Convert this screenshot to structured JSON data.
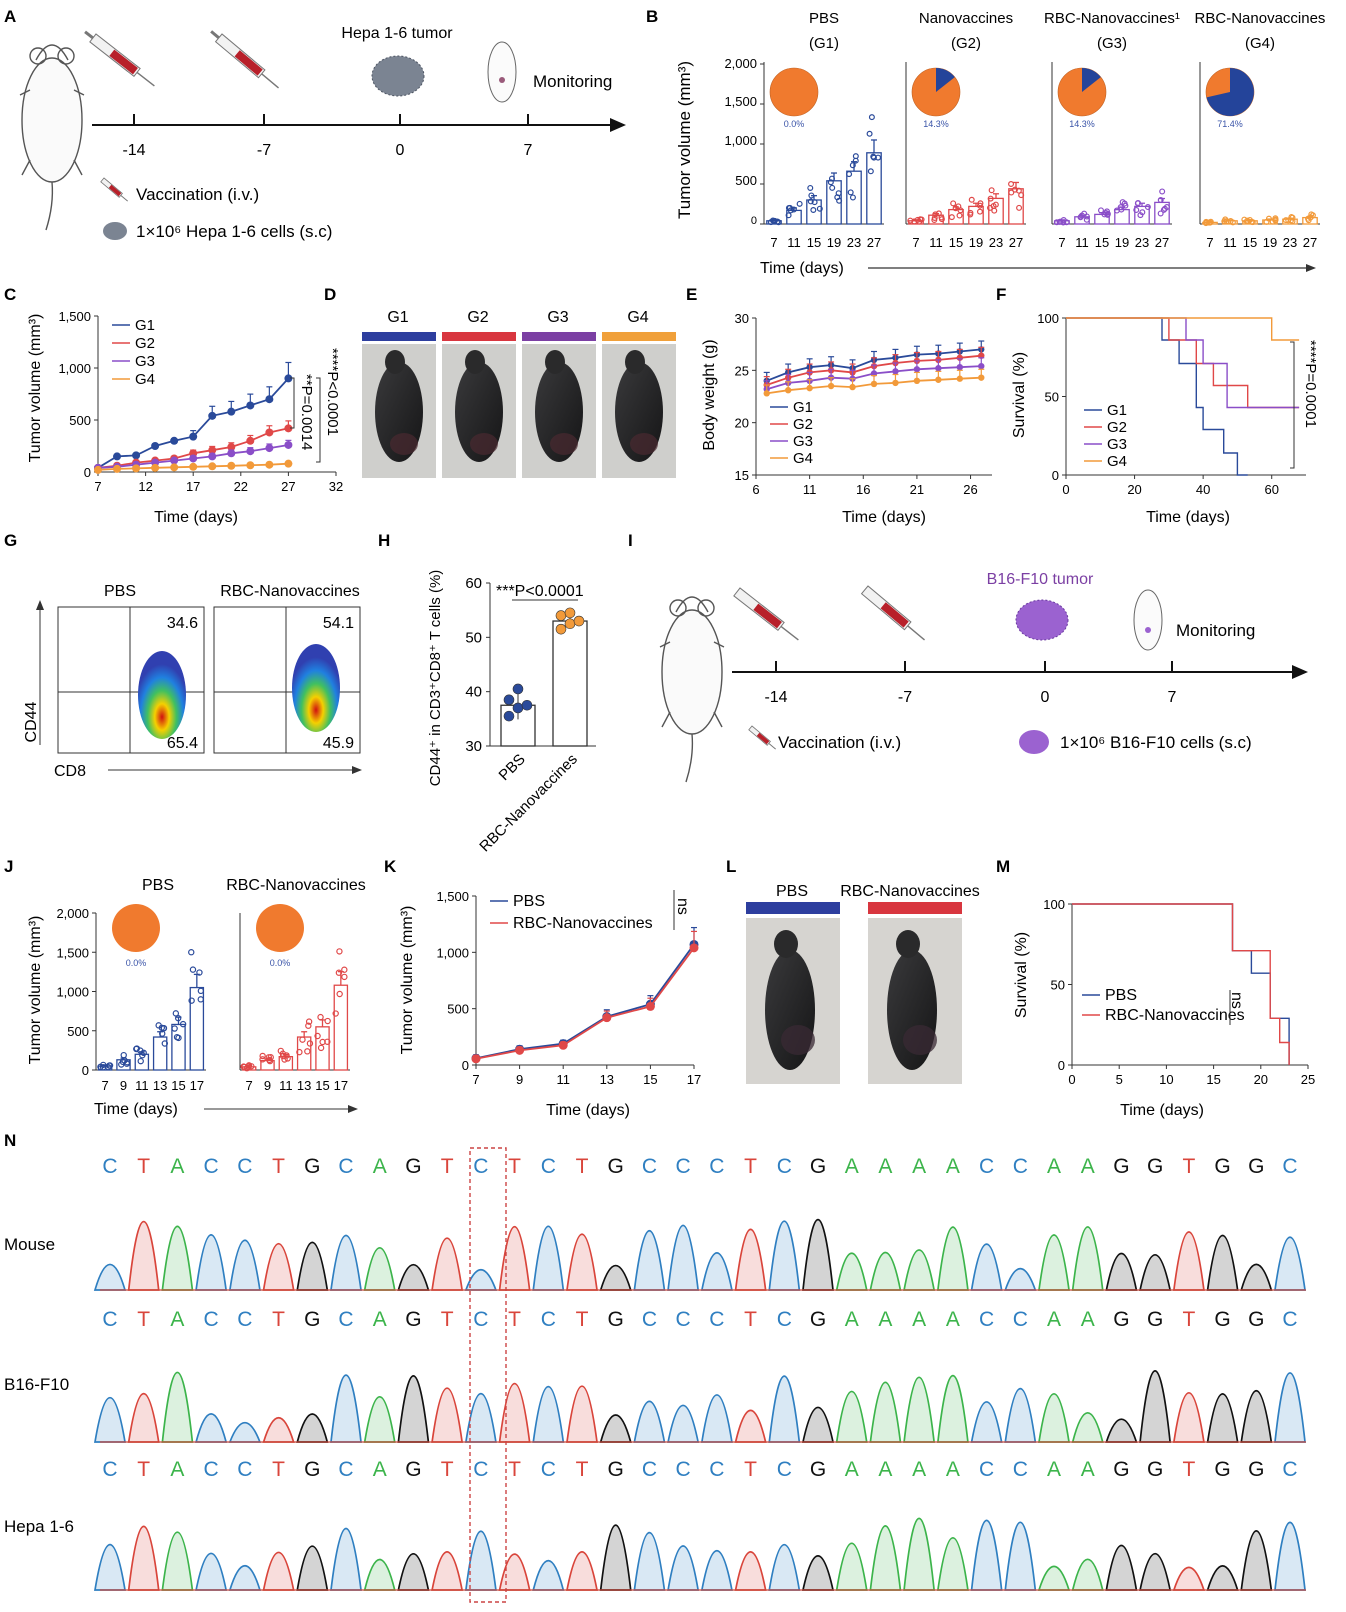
{
  "panel_letters": [
    "A",
    "B",
    "C",
    "D",
    "E",
    "F",
    "G",
    "H",
    "I",
    "J",
    "K",
    "L",
    "M",
    "N"
  ],
  "panel_a": {
    "tumor": "Hepa 1-6 tumor",
    "monitoring": "Monitoring",
    "ticks": [
      "-14",
      "-7",
      "0",
      "7"
    ],
    "legend_vaccination": "Vaccination (i.v.)",
    "legend_cells": "1×10⁶ Hepa 1-6 cells (s.c)"
  },
  "panel_i": {
    "tumor": "B16-F10 tumor",
    "monitoring": "Monitoring",
    "ticks": [
      "-14",
      "-7",
      "0",
      "7"
    ],
    "legend_vaccination": "Vaccination (i.v.)",
    "legend_cells": "1×10⁶ B16-F10 cells (s.c)"
  },
  "chart_data": [
    {
      "panel": "B",
      "type": "bar",
      "ylabel": "Tumor volume (mm³)",
      "xlabel": "Time (days)",
      "ylim": [
        0,
        2000
      ],
      "yticks": [
        "0",
        "500",
        "1,000",
        "1,500",
        "2,000"
      ],
      "categories": [
        "7",
        "11",
        "15",
        "19",
        "23",
        "27"
      ],
      "groups": [
        {
          "title": "PBS",
          "sub": "(G1)",
          "color": "#2a4a9a",
          "pie_percent": 0.0,
          "pie_label": "0.0%",
          "means": [
            40,
            170,
            300,
            540,
            660,
            890
          ]
        },
        {
          "title": "Nanovaccines",
          "sub": "(G2)",
          "color": "#e04848",
          "pie_percent": 14.3,
          "pie_label": "14.3%",
          "means": [
            40,
            110,
            180,
            220,
            320,
            440
          ]
        },
        {
          "title": "RBC-Nanovaccines¹",
          "sub": "(G3)",
          "color": "#8a4ec8",
          "pie_percent": 14.3,
          "pie_label": "14.3%",
          "means": [
            40,
            90,
            120,
            180,
            220,
            270
          ]
        },
        {
          "title": "RBC-Nanovaccines",
          "sub": "(G4)",
          "color": "#f29a3a",
          "pie_percent": 71.4,
          "pie_label": "71.4%",
          "means": [
            20,
            40,
            40,
            50,
            60,
            80
          ]
        }
      ]
    },
    {
      "panel": "C",
      "type": "line",
      "ylabel": "Tumor volume (mm³)",
      "xlabel": "Time (days)",
      "xlim": [
        7,
        32
      ],
      "ylim": [
        0,
        1500
      ],
      "xticks": [
        "7",
        "12",
        "17",
        "22",
        "27",
        "32"
      ],
      "yticks": [
        "0",
        "500",
        "1,000",
        "1,500"
      ],
      "x": [
        7,
        9,
        11,
        13,
        15,
        17,
        19,
        21,
        23,
        25,
        27
      ],
      "series": [
        {
          "name": "G1",
          "color": "#2a4a9a",
          "values": [
            40,
            150,
            160,
            250,
            300,
            340,
            540,
            580,
            640,
            700,
            900
          ]
        },
        {
          "name": "G2",
          "color": "#e04848",
          "values": [
            40,
            60,
            90,
            110,
            130,
            180,
            210,
            240,
            300,
            380,
            420
          ]
        },
        {
          "name": "G3",
          "color": "#8a4ec8",
          "values": [
            40,
            50,
            70,
            90,
            110,
            130,
            150,
            180,
            200,
            230,
            260
          ]
        },
        {
          "name": "G4",
          "color": "#f29a3a",
          "values": [
            20,
            30,
            35,
            40,
            45,
            50,
            55,
            60,
            65,
            70,
            80
          ]
        }
      ],
      "annotations": [
        "**P=0.0014",
        "****P<0.0001"
      ]
    },
    {
      "panel": "E",
      "type": "line",
      "ylabel": "Body weight (g)",
      "xlabel": "Time (days)",
      "xlim": [
        6,
        28
      ],
      "ylim": [
        15,
        30
      ],
      "xticks": [
        "6",
        "11",
        "16",
        "21",
        "26"
      ],
      "yticks": [
        "15",
        "20",
        "25",
        "30"
      ],
      "x": [
        7,
        9,
        11,
        13,
        15,
        17,
        19,
        21,
        23,
        25,
        27
      ],
      "series": [
        {
          "name": "G1",
          "color": "#2a4a9a",
          "values": [
            24.0,
            24.8,
            25.3,
            25.5,
            25.2,
            26.0,
            26.2,
            26.5,
            26.6,
            26.8,
            27.0
          ]
        },
        {
          "name": "G2",
          "color": "#e04848",
          "values": [
            23.6,
            24.3,
            24.8,
            25.0,
            24.8,
            25.4,
            25.7,
            25.9,
            26.0,
            26.2,
            26.4
          ]
        },
        {
          "name": "G3",
          "color": "#8a4ec8",
          "values": [
            23.2,
            23.8,
            24.0,
            24.3,
            24.2,
            24.7,
            24.9,
            25.1,
            25.2,
            25.3,
            25.4
          ]
        },
        {
          "name": "G4",
          "color": "#f29a3a",
          "values": [
            22.8,
            23.1,
            23.3,
            23.5,
            23.4,
            23.7,
            23.8,
            24.0,
            24.1,
            24.2,
            24.3
          ]
        }
      ]
    },
    {
      "panel": "F",
      "type": "line",
      "ylabel": "Survival (%)",
      "xlabel": "Time (days)",
      "xlim": [
        0,
        70
      ],
      "ylim": [
        0,
        100
      ],
      "xticks": [
        "0",
        "20",
        "40",
        "60"
      ],
      "yticks": [
        "0",
        "50",
        "100"
      ],
      "series": [
        {
          "name": "G1",
          "color": "#2a4a9a",
          "steps": [
            [
              0,
              100
            ],
            [
              28,
              100
            ],
            [
              28,
              86
            ],
            [
              33,
              86
            ],
            [
              33,
              71
            ],
            [
              38,
              71
            ],
            [
              38,
              43
            ],
            [
              40,
              43
            ],
            [
              40,
              29
            ],
            [
              46,
              29
            ],
            [
              46,
              14
            ],
            [
              50,
              14
            ],
            [
              50,
              0
            ],
            [
              53,
              0
            ]
          ]
        },
        {
          "name": "G2",
          "color": "#e04848",
          "steps": [
            [
              0,
              100
            ],
            [
              30,
              100
            ],
            [
              30,
              86
            ],
            [
              38,
              86
            ],
            [
              38,
              71
            ],
            [
              43,
              71
            ],
            [
              43,
              57
            ],
            [
              53,
              57
            ],
            [
              53,
              43
            ],
            [
              68,
              43
            ]
          ]
        },
        {
          "name": "G3",
          "color": "#8a4ec8",
          "steps": [
            [
              0,
              100
            ],
            [
              35,
              100
            ],
            [
              35,
              86
            ],
            [
              40,
              86
            ],
            [
              40,
              71
            ],
            [
              47,
              71
            ],
            [
              47,
              43
            ],
            [
              68,
              43
            ]
          ]
        },
        {
          "name": "G4",
          "color": "#f29a3a",
          "steps": [
            [
              0,
              100
            ],
            [
              60,
              100
            ],
            [
              60,
              86
            ],
            [
              68,
              86
            ]
          ]
        }
      ],
      "annotations": [
        "****P=0.0001"
      ]
    },
    {
      "panel": "G",
      "type": "scatter",
      "xlabel": "CD8",
      "ylabel": "CD44",
      "plots": [
        {
          "title": "PBS",
          "upper": "34.6",
          "lower": "65.4"
        },
        {
          "title": "RBC-Nanovaccines",
          "upper": "54.1",
          "lower": "45.9"
        }
      ]
    },
    {
      "panel": "H",
      "type": "bar",
      "ylabel": "CD44⁺ in CD3⁺CD8⁺ T cells (%)",
      "ylim": [
        30,
        60
      ],
      "yticks": [
        "30",
        "40",
        "50",
        "60"
      ],
      "categories": [
        "PBS",
        "RBC-Nanovaccines"
      ],
      "values": [
        37.5,
        53.0
      ],
      "points": [
        [
          35.5,
          37.0,
          37.5,
          38.5,
          40.5
        ],
        [
          51.5,
          52.5,
          53.0,
          54.0,
          54.5
        ]
      ],
      "colors": [
        "#2a4a9a",
        "#f29a3a"
      ],
      "annotation": "***P<0.0001"
    },
    {
      "panel": "J",
      "type": "bar",
      "ylabel": "Tumor volume (mm³)",
      "xlabel": "Time (days)",
      "ylim": [
        0,
        2000
      ],
      "yticks": [
        "0",
        "500",
        "1,000",
        "1,500",
        "2,000"
      ],
      "categories": [
        "7",
        "9",
        "11",
        "13",
        "15",
        "17"
      ],
      "groups": [
        {
          "title": "PBS",
          "color": "#2a4a9a",
          "pie_label": "0.0%",
          "means": [
            50,
            130,
            200,
            420,
            580,
            1050
          ]
        },
        {
          "title": "RBC-Nanovaccines",
          "color": "#e04848",
          "pie_label": "0.0%",
          "means": [
            40,
            120,
            170,
            420,
            550,
            1080
          ]
        }
      ]
    },
    {
      "panel": "K",
      "type": "line",
      "ylabel": "Tumor volume (mm³)",
      "xlabel": "Time (days)",
      "xlim": [
        7,
        17
      ],
      "ylim": [
        0,
        1500
      ],
      "xticks": [
        "7",
        "9",
        "11",
        "13",
        "15",
        "17"
      ],
      "yticks": [
        "0",
        "500",
        "1,000",
        "1,500"
      ],
      "x": [
        7,
        9,
        11,
        13,
        15,
        17
      ],
      "series": [
        {
          "name": "PBS",
          "color": "#2a4a9a",
          "values": [
            60,
            140,
            190,
            430,
            540,
            1070
          ]
        },
        {
          "name": "RBC-Nanovaccines",
          "color": "#e04848",
          "values": [
            55,
            130,
            175,
            420,
            520,
            1040
          ]
        }
      ],
      "annotations": [
        "ns"
      ]
    },
    {
      "panel": "M",
      "type": "line",
      "ylabel": "Survival (%)",
      "xlabel": "Time (days)",
      "xlim": [
        0,
        25
      ],
      "ylim": [
        0,
        100
      ],
      "xticks": [
        "0",
        "5",
        "10",
        "15",
        "20",
        "25"
      ],
      "yticks": [
        "0",
        "50",
        "100"
      ],
      "series": [
        {
          "name": "PBS",
          "color": "#2a4a9a",
          "steps": [
            [
              0,
              100
            ],
            [
              17,
              100
            ],
            [
              17,
              71
            ],
            [
              19,
              71
            ],
            [
              19,
              57
            ],
            [
              21,
              57
            ],
            [
              21,
              29
            ],
            [
              23,
              29
            ],
            [
              23,
              0
            ]
          ]
        },
        {
          "name": "RBC-Nanovaccines",
          "color": "#e04848",
          "steps": [
            [
              0,
              100
            ],
            [
              17,
              100
            ],
            [
              17,
              71
            ],
            [
              21,
              71
            ],
            [
              21,
              29
            ],
            [
              22,
              29
            ],
            [
              22,
              14
            ],
            [
              23,
              14
            ],
            [
              23,
              0
            ]
          ]
        }
      ],
      "annotations": [
        "ns"
      ]
    }
  ],
  "panel_d": {
    "groups": [
      "G1",
      "G2",
      "G3",
      "G4"
    ],
    "colors": [
      "#2d3e9e",
      "#d8363f",
      "#7b3fa3",
      "#f0a03a"
    ]
  },
  "panel_l": {
    "groups": [
      "PBS",
      "RBC-Nanovaccines"
    ],
    "colors": [
      "#2d3e9e",
      "#d8363f"
    ]
  },
  "panel_n": {
    "sequence": "CTACCTGCAGTCTCTGCCCTCGAAAACCAAGGTGGC",
    "rows": [
      "Mouse",
      "B16-F10",
      "Hepa 1-6"
    ],
    "base_colors": {
      "A": "#3cb44b",
      "C": "#2f7fc1",
      "G": "#111111",
      "T": "#d9453b"
    }
  }
}
